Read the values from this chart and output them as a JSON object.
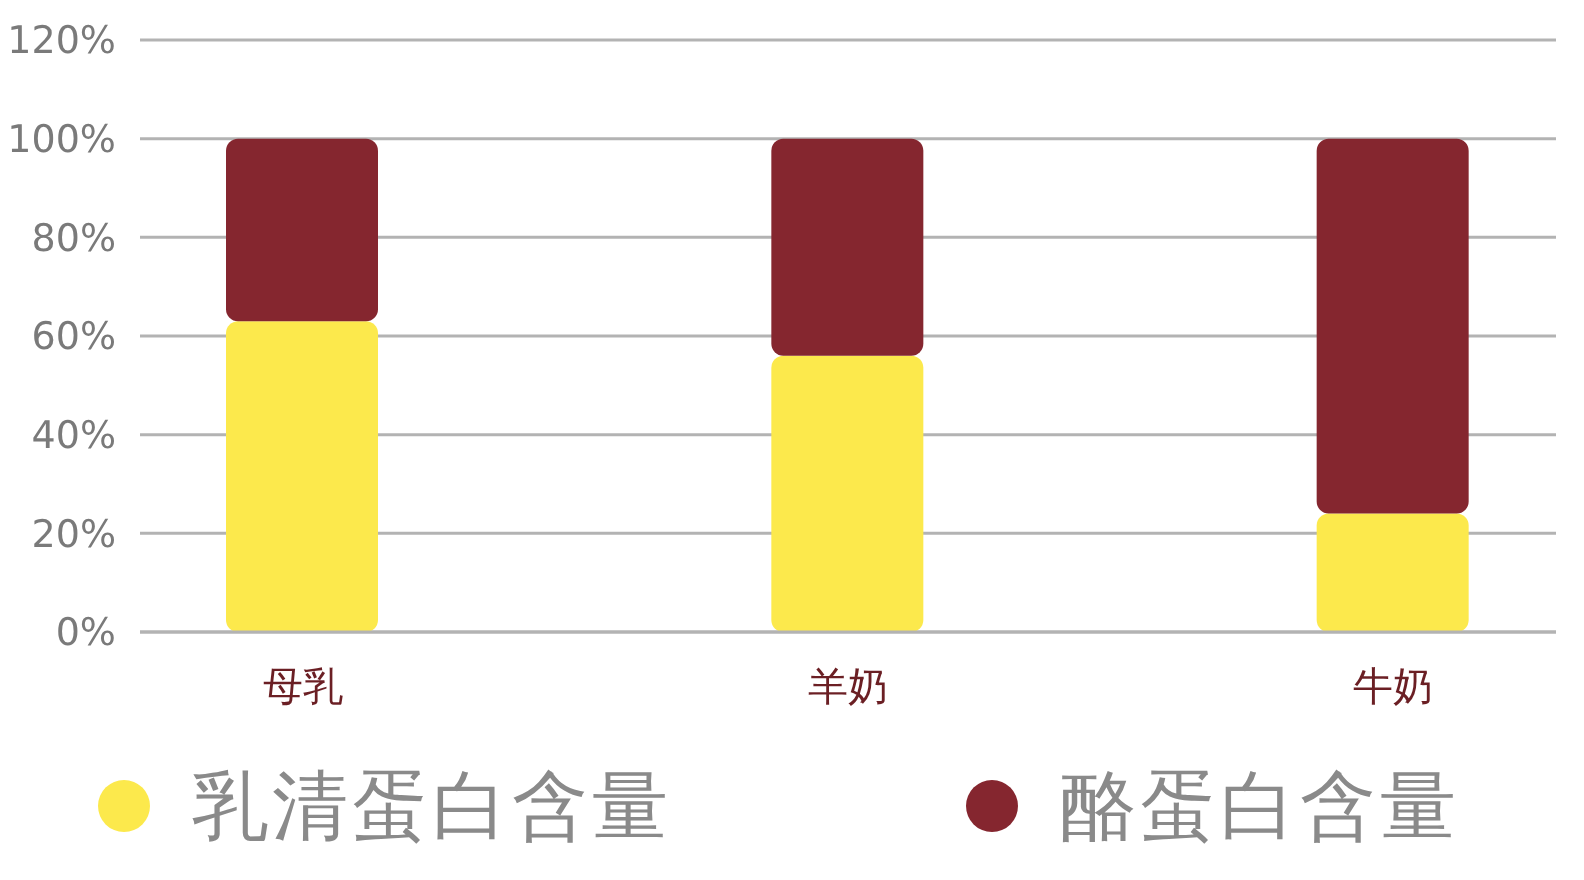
{
  "chart_data": {
    "type": "bar",
    "stacked": true,
    "categories": [
      "母乳",
      "羊奶",
      "牛奶"
    ],
    "series": [
      {
        "name": "乳清蛋白含量",
        "color": "#fce94c",
        "values": [
          63,
          56,
          24
        ]
      },
      {
        "name": "酪蛋白含量",
        "color": "#85262f",
        "values": [
          37,
          44,
          76
        ]
      }
    ],
    "ylim": [
      0,
      120
    ],
    "yticks": [
      {
        "value": 0,
        "label": "0%"
      },
      {
        "value": 20,
        "label": "20%"
      },
      {
        "value": 40,
        "label": "40%"
      },
      {
        "value": 60,
        "label": "60%"
      },
      {
        "value": 80,
        "label": "80%"
      },
      {
        "value": 100,
        "label": "100%"
      },
      {
        "value": 120,
        "label": "120%"
      }
    ],
    "grid": "y",
    "legend": "bottom"
  }
}
